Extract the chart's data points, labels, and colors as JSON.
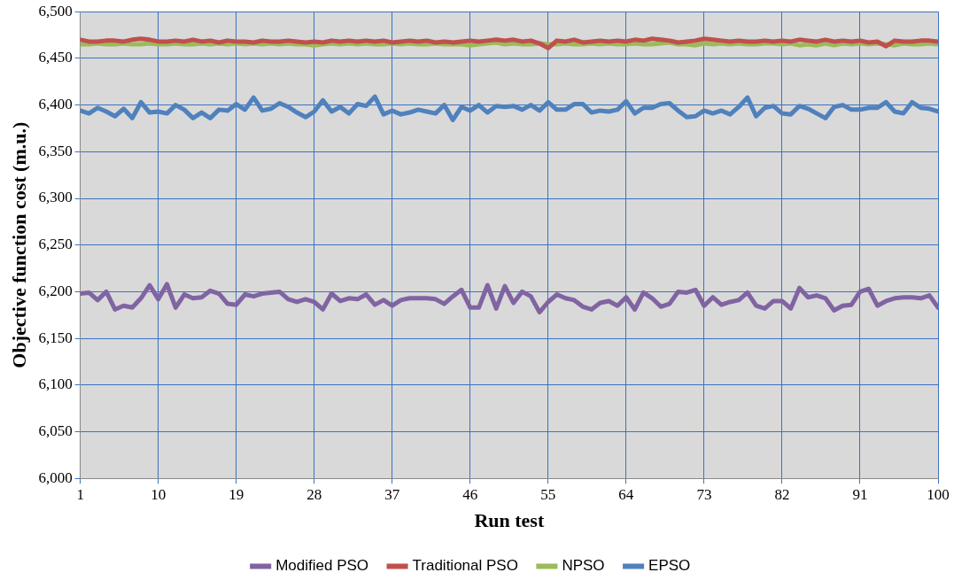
{
  "chart_data": {
    "type": "line",
    "xlabel": "Run test",
    "ylabel": "Objective function cost (m.u.)",
    "x": [
      1,
      2,
      3,
      4,
      5,
      6,
      7,
      8,
      9,
      10,
      11,
      12,
      13,
      14,
      15,
      16,
      17,
      18,
      19,
      20,
      21,
      22,
      23,
      24,
      25,
      26,
      27,
      28,
      29,
      30,
      31,
      32,
      33,
      34,
      35,
      36,
      37,
      38,
      39,
      40,
      41,
      42,
      43,
      44,
      45,
      46,
      47,
      48,
      49,
      50,
      51,
      52,
      53,
      54,
      55,
      56,
      57,
      58,
      59,
      60,
      61,
      62,
      63,
      64,
      65,
      66,
      67,
      68,
      69,
      70,
      71,
      72,
      73,
      74,
      75,
      76,
      77,
      78,
      79,
      80,
      81,
      82,
      83,
      84,
      85,
      86,
      87,
      88,
      89,
      90,
      91,
      92,
      93,
      94,
      95,
      96,
      97,
      98,
      99,
      100
    ],
    "series": [
      {
        "name": "Modified PSO",
        "color": "#8064a2",
        "values": [
          6198,
          6199,
          6191,
          6200,
          6181,
          6185,
          6183,
          6193,
          6207,
          6192,
          6208,
          6183,
          6197,
          6193,
          6194,
          6201,
          6198,
          6187,
          6186,
          6197,
          6195,
          6198,
          6199,
          6200,
          6192,
          6189,
          6192,
          6189,
          6181,
          6198,
          6190,
          6193,
          6192,
          6197,
          6186,
          6191,
          6185,
          6191,
          6193,
          6193,
          6193,
          6192,
          6187,
          6195,
          6202,
          6183,
          6183,
          6207,
          6182,
          6206,
          6188,
          6200,
          6195,
          6178,
          6189,
          6197,
          6193,
          6191,
          6184,
          6181,
          6188,
          6190,
          6185,
          6194,
          6181,
          6199,
          6193,
          6184,
          6187,
          6200,
          6199,
          6202,
          6185,
          6194,
          6186,
          6189,
          6191,
          6199,
          6185,
          6182,
          6190,
          6190,
          6182,
          6204,
          6194,
          6196,
          6193,
          6180,
          6185,
          6186,
          6200,
          6203,
          6185,
          6190,
          6193,
          6194,
          6194,
          6193,
          6196,
          6183
        ]
      },
      {
        "name": "Traditional PSO",
        "color": "#c0504d",
        "values": [
          6470,
          6468,
          6468,
          6469,
          6469,
          6468,
          6470,
          6471,
          6470,
          6468,
          6468,
          6469,
          6468,
          6470,
          6468,
          6469,
          6467,
          6469,
          6468,
          6468,
          6467,
          6469,
          6468,
          6468,
          6469,
          6468,
          6467,
          6468,
          6467,
          6469,
          6468,
          6469,
          6468,
          6469,
          6468,
          6469,
          6467,
          6468,
          6469,
          6468,
          6469,
          6467,
          6468,
          6467,
          6468,
          6469,
          6468,
          6469,
          6470,
          6469,
          6470,
          6468,
          6469,
          6466,
          6461,
          6469,
          6468,
          6470,
          6467,
          6468,
          6469,
          6468,
          6469,
          6468,
          6470,
          6469,
          6471,
          6470,
          6469,
          6467,
          6468,
          6469,
          6471,
          6470,
          6469,
          6468,
          6469,
          6468,
          6468,
          6469,
          6468,
          6469,
          6468,
          6470,
          6469,
          6468,
          6470,
          6468,
          6469,
          6468,
          6469,
          6467,
          6468,
          6463,
          6469,
          6468,
          6468,
          6469,
          6469,
          6468
        ]
      },
      {
        "name": "NPSO",
        "color": "#9bbb59",
        "values": [
          6465,
          6465,
          6466,
          6465,
          6465,
          6466,
          6465,
          6465,
          6466,
          6465,
          6465,
          6466,
          6465,
          6465,
          6466,
          6465,
          6466,
          6465,
          6466,
          6465,
          6466,
          6465,
          6466,
          6465,
          6466,
          6465,
          6465,
          6464,
          6465,
          6466,
          6465,
          6466,
          6465,
          6466,
          6465,
          6465,
          6466,
          6465,
          6466,
          6465,
          6465,
          6466,
          6465,
          6465,
          6465,
          6464,
          6465,
          6466,
          6467,
          6465,
          6466,
          6465,
          6465,
          6466,
          6465,
          6465,
          6466,
          6465,
          6465,
          6466,
          6465,
          6466,
          6465,
          6465,
          6466,
          6465,
          6465,
          6466,
          6467,
          6465,
          6465,
          6464,
          6466,
          6465,
          6466,
          6465,
          6466,
          6465,
          6465,
          6466,
          6466,
          6465,
          6466,
          6464,
          6465,
          6464,
          6466,
          6464,
          6466,
          6465,
          6466,
          6465,
          6466,
          6465,
          6464,
          6466,
          6465,
          6465,
          6466,
          6465
        ]
      },
      {
        "name": "EPSO",
        "color": "#4f81bd",
        "values": [
          6394,
          6391,
          6397,
          6393,
          6388,
          6396,
          6386,
          6403,
          6392,
          6393,
          6391,
          6400,
          6395,
          6386,
          6392,
          6386,
          6395,
          6394,
          6401,
          6395,
          6408,
          6394,
          6396,
          6402,
          6398,
          6392,
          6387,
          6393,
          6405,
          6393,
          6398,
          6391,
          6401,
          6399,
          6409,
          6390,
          6394,
          6390,
          6392,
          6395,
          6393,
          6391,
          6400,
          6384,
          6398,
          6394,
          6400,
          6392,
          6399,
          6398,
          6399,
          6395,
          6400,
          6394,
          6403,
          6395,
          6395,
          6401,
          6401,
          6392,
          6394,
          6393,
          6395,
          6404,
          6391,
          6397,
          6397,
          6401,
          6402,
          6394,
          6387,
          6388,
          6394,
          6391,
          6394,
          6390,
          6398,
          6408,
          6388,
          6397,
          6399,
          6391,
          6390,
          6399,
          6396,
          6391,
          6386,
          6398,
          6400,
          6395,
          6395,
          6397,
          6397,
          6403,
          6393,
          6391,
          6403,
          6397,
          6396,
          6393
        ]
      }
    ],
    "xlim": [
      1,
      100
    ],
    "xticks": [
      1,
      10,
      19,
      28,
      37,
      46,
      55,
      64,
      73,
      82,
      91,
      100
    ],
    "ylim": [
      6000,
      6500
    ],
    "yticks": [
      {
        "value": 6000,
        "label": "6,000"
      },
      {
        "value": 6050,
        "label": "6,050"
      },
      {
        "value": 6100,
        "label": "6,100"
      },
      {
        "value": 6150,
        "label": "6,150"
      },
      {
        "value": 6200,
        "label": "6,200"
      },
      {
        "value": 6250,
        "label": "6,250"
      },
      {
        "value": 6300,
        "label": "6,300"
      },
      {
        "value": 6350,
        "label": "6,350"
      },
      {
        "value": 6400,
        "label": "6,400"
      },
      {
        "value": 6450,
        "label": "6,450"
      },
      {
        "value": 6500,
        "label": "6,500"
      }
    ],
    "grid": true,
    "legend": "bottom",
    "marker": "none",
    "line_style": "solid"
  }
}
